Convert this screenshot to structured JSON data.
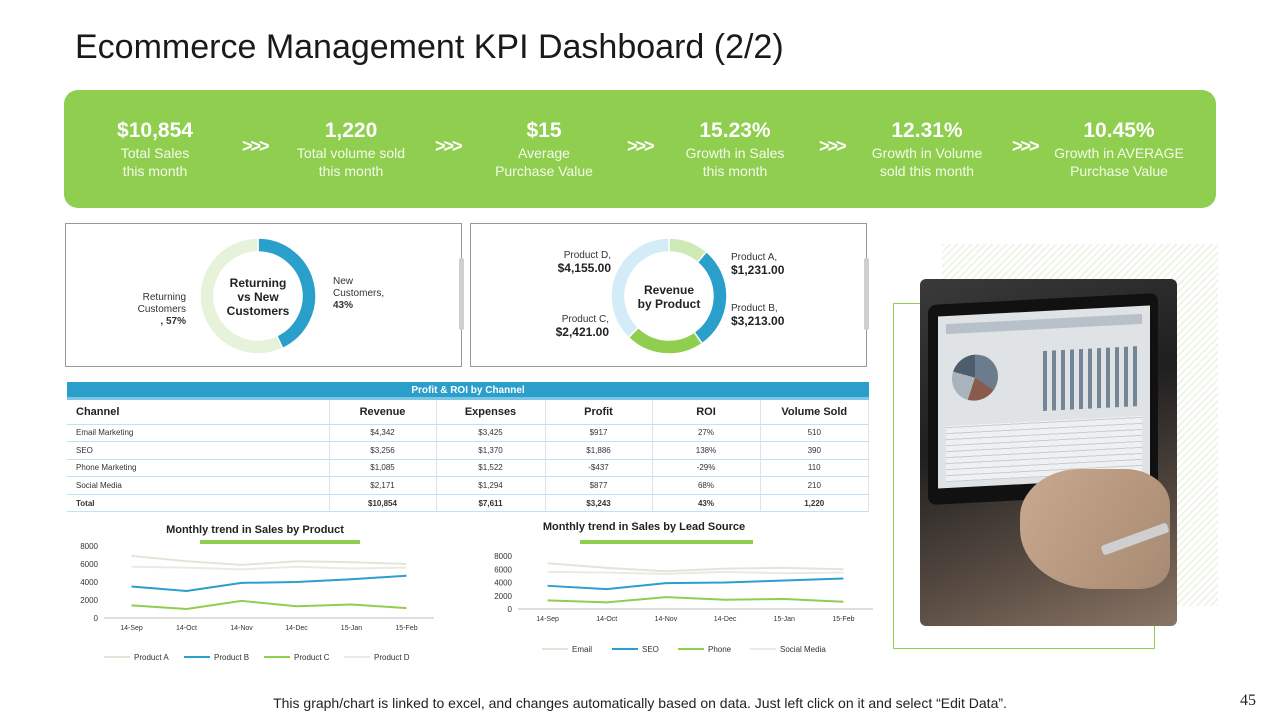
{
  "title": "Ecommerce Management KPI Dashboard (2/2)",
  "kpis": [
    {
      "value": "$10,854",
      "line1": "Total Sales",
      "line2": "this month"
    },
    {
      "value": "1,220",
      "line1": "Total volume sold",
      "line2": "this month"
    },
    {
      "value": "$15",
      "line1": "Average",
      "line2": "Purchase Value"
    },
    {
      "value": "15.23%",
      "line1": "Growth in Sales",
      "line2": "this month"
    },
    {
      "value": "12.31%",
      "line1": "Growth in Volume",
      "line2": "sold this month"
    },
    {
      "value": "10.45%",
      "line1": "Growth in AVERAGE",
      "line2": "Purchase Value"
    }
  ],
  "chevron": ">>>",
  "donut_customers": {
    "center_line1": "Returning",
    "center_line2": "vs New",
    "center_line3": "Customers",
    "returning_label_1": "Returning",
    "returning_label_2": "Customers",
    "returning_label_3": ", 57%",
    "new_label_1": "New",
    "new_label_2": "Customers,",
    "new_label_3": "43%"
  },
  "donut_revenue": {
    "center_line1": "Revenue",
    "center_line2": "by Product",
    "d_name": "Product D,",
    "d_value": "$4,155.00",
    "a_name": "Product A,",
    "a_value": "$1,231.00",
    "b_name": "Product B,",
    "b_value": "$3,213.00",
    "c_name": "Product C,",
    "c_value": "$2,421.00"
  },
  "table": {
    "title": "Profit & ROI by Channel",
    "headers": [
      "Channel",
      "Revenue",
      "Expenses",
      "Profit",
      "ROI",
      "Volume Sold"
    ],
    "rows": [
      [
        "Email Marketing",
        "$4,342",
        "$3,425",
        "$917",
        "27%",
        "510"
      ],
      [
        "SEO",
        "$3,256",
        "$1,370",
        "$1,886",
        "138%",
        "390"
      ],
      [
        "Phone Marketing",
        "$1,085",
        "$1,522",
        "-$437",
        "-29%",
        "110"
      ],
      [
        "Social Media",
        "$2,171",
        "$1,294",
        "$877",
        "68%",
        "210"
      ]
    ],
    "total": [
      "Total",
      "$10,854",
      "$7,611",
      "$3,243",
      "43%",
      "1,220"
    ]
  },
  "chart_data": [
    {
      "type": "pie",
      "title": "Returning vs New Customers",
      "categories": [
        "Returning Customers",
        "New Customers"
      ],
      "values": [
        57,
        43
      ],
      "colors": [
        "#e6f2da",
        "#2a9fcc"
      ]
    },
    {
      "type": "pie",
      "title": "Revenue by Product",
      "categories": [
        "Product A",
        "Product B",
        "Product C",
        "Product D"
      ],
      "values": [
        1231,
        3213,
        2421,
        4155
      ],
      "colors": [
        "#cfe9b5",
        "#2a9fcc",
        "#8fce4f",
        "#d4ecf7"
      ]
    },
    {
      "type": "line",
      "title": "Monthly trend in Sales by Product",
      "categories": [
        "14-Sep",
        "14-Oct",
        "14-Nov",
        "14-Dec",
        "15-Jan",
        "15-Feb"
      ],
      "ylim": [
        0,
        8000
      ],
      "yticks": [
        0,
        2000,
        4000,
        6000,
        8000
      ],
      "series": [
        {
          "name": "Product A",
          "color": "#e2e6d8",
          "values": [
            6900,
            6300,
            5900,
            6300,
            6200,
            6000
          ]
        },
        {
          "name": "Product B",
          "color": "#2a9fcc",
          "values": [
            3500,
            3000,
            3900,
            4000,
            4300,
            4700
          ]
        },
        {
          "name": "Product C",
          "color": "#8fce4f",
          "values": [
            1400,
            1000,
            1900,
            1300,
            1500,
            1100
          ]
        },
        {
          "name": "Product D",
          "color": "#eaeae2",
          "values": [
            5700,
            5600,
            5400,
            5700,
            5500,
            5600
          ]
        }
      ],
      "legend": "bottom"
    },
    {
      "type": "line",
      "title": "Monthly trend in Sales by Lead Source",
      "categories": [
        "14-Sep",
        "14-Oct",
        "14-Nov",
        "14-Dec",
        "15-Jan",
        "15-Feb"
      ],
      "ylim": [
        0,
        8000
      ],
      "yticks": [
        0,
        2000,
        4000,
        6000,
        8000
      ],
      "series": [
        {
          "name": "Email",
          "color": "#e2e6d8",
          "values": [
            6900,
            6200,
            5700,
            6100,
            6200,
            6000
          ]
        },
        {
          "name": "SEO",
          "color": "#2a9fcc",
          "values": [
            3500,
            3000,
            3900,
            4000,
            4300,
            4600
          ]
        },
        {
          "name": "Phone",
          "color": "#8fce4f",
          "values": [
            1300,
            1000,
            1800,
            1400,
            1500,
            1100
          ]
        },
        {
          "name": "Social Media",
          "color": "#eaeae2",
          "values": [
            5600,
            5500,
            5300,
            5600,
            5400,
            5500
          ]
        }
      ],
      "legend": "bottom"
    }
  ],
  "footer": "This graph/chart is linked to excel, and changes automatically based on data. Just left click on it and select “Edit Data”.",
  "page_number": "45"
}
